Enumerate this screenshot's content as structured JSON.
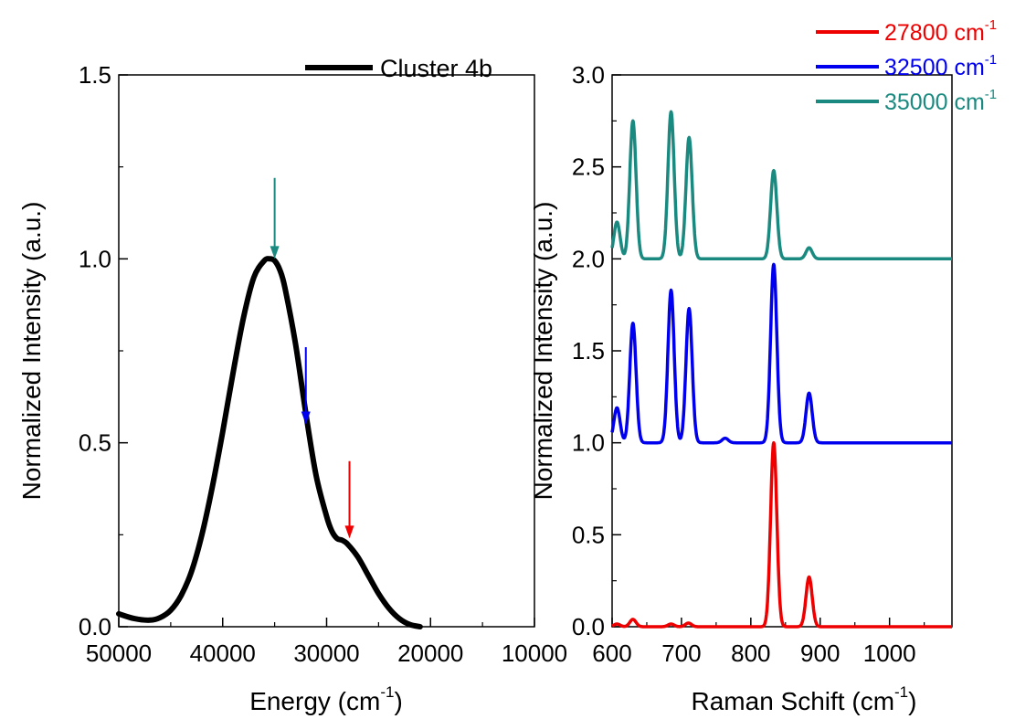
{
  "chart_data": [
    {
      "type": "line",
      "xlabel": "Energy (cm",
      "xlabel_sup": "-1",
      "xlabel_close": ")",
      "ylabel": "Normalized Intensity (a.u.)",
      "xlim": [
        50000,
        10000
      ],
      "ylim": [
        0.0,
        1.5
      ],
      "x_reversed": true,
      "xticks": [
        50000,
        40000,
        30000,
        20000,
        10000
      ],
      "xtick_labels": [
        "50000",
        "40000",
        "30000",
        "20000",
        "10000"
      ],
      "yticks": [
        0.0,
        0.5,
        1.0,
        1.5
      ],
      "ytick_labels": [
        "0.0",
        "0.5",
        "1.0",
        "1.5"
      ],
      "series": [
        {
          "name": "Cluster 4b",
          "color": "#000000",
          "x": [
            50000,
            48500,
            47000,
            46000,
            45000,
            44000,
            43000,
            42000,
            41000,
            40000,
            39000,
            38000,
            37000,
            36000,
            35500,
            35000,
            34500,
            34000,
            33000,
            32000,
            31000,
            30000,
            29500,
            29000,
            28500,
            28000,
            27000,
            26000,
            25000,
            24000,
            23000,
            22000,
            21000
          ],
          "y": [
            0.035,
            0.022,
            0.018,
            0.025,
            0.045,
            0.085,
            0.15,
            0.25,
            0.38,
            0.53,
            0.69,
            0.84,
            0.95,
            0.995,
            1.0,
            0.995,
            0.97,
            0.92,
            0.77,
            0.58,
            0.41,
            0.3,
            0.26,
            0.24,
            0.235,
            0.225,
            0.19,
            0.14,
            0.09,
            0.05,
            0.022,
            0.006,
            0.0
          ]
        }
      ],
      "annotations": [
        {
          "x": 35000,
          "y_from": 1.22,
          "y_to": 1.0,
          "color": "#1a8a80"
        },
        {
          "x": 32000,
          "y_from": 0.76,
          "y_to": 0.55,
          "color": "#0000ee"
        },
        {
          "x": 27800,
          "y_from": 0.45,
          "y_to": 0.24,
          "color": "#ee0000"
        }
      ],
      "legend": "top-right"
    },
    {
      "type": "line",
      "xlabel": "Raman Schift (cm",
      "xlabel_sup": "-1",
      "xlabel_close": ")",
      "ylabel": "Normalized Intensity (a.u.)",
      "xlim": [
        600,
        1090
      ],
      "ylim": [
        0.0,
        3.0
      ],
      "xticks": [
        600,
        700,
        800,
        900,
        1000
      ],
      "xtick_labels": [
        "600",
        "700",
        "800",
        "900",
        "1000"
      ],
      "yticks": [
        0.0,
        0.5,
        1.0,
        1.5,
        2.0,
        2.5,
        3.0
      ],
      "ytick_labels": [
        "0.0",
        "0.5",
        "1.0",
        "1.5",
        "2.0",
        "2.5",
        "3.0"
      ],
      "peak_width": 4.5,
      "series": [
        {
          "name": "27800 cm",
          "name_sup": "-1",
          "color": "#ee0000",
          "offset": 0.0,
          "peaks": [
            {
              "center": 607,
              "height": 0.015
            },
            {
              "center": 630,
              "height": 0.04
            },
            {
              "center": 685,
              "height": 0.015
            },
            {
              "center": 710,
              "height": 0.02
            },
            {
              "center": 833,
              "height": 1.0
            },
            {
              "center": 884,
              "height": 0.27
            }
          ]
        },
        {
          "name": "32500 cm",
          "name_sup": "-1",
          "color": "#0000ee",
          "offset": 1.0,
          "peaks": [
            {
              "center": 607,
              "height": 0.19
            },
            {
              "center": 630,
              "height": 0.65
            },
            {
              "center": 685,
              "height": 0.83
            },
            {
              "center": 711,
              "height": 0.73
            },
            {
              "center": 763,
              "height": 0.025
            },
            {
              "center": 833,
              "height": 0.97
            },
            {
              "center": 884,
              "height": 0.27
            }
          ]
        },
        {
          "name": "35000 cm",
          "name_sup": "-1",
          "color": "#1a8a80",
          "offset": 2.0,
          "peaks": [
            {
              "center": 607,
              "height": 0.2
            },
            {
              "center": 630,
              "height": 0.75
            },
            {
              "center": 685,
              "height": 0.8
            },
            {
              "center": 711,
              "height": 0.66
            },
            {
              "center": 833,
              "height": 0.48
            },
            {
              "center": 884,
              "height": 0.06
            }
          ]
        }
      ],
      "legend": "top-right"
    }
  ]
}
